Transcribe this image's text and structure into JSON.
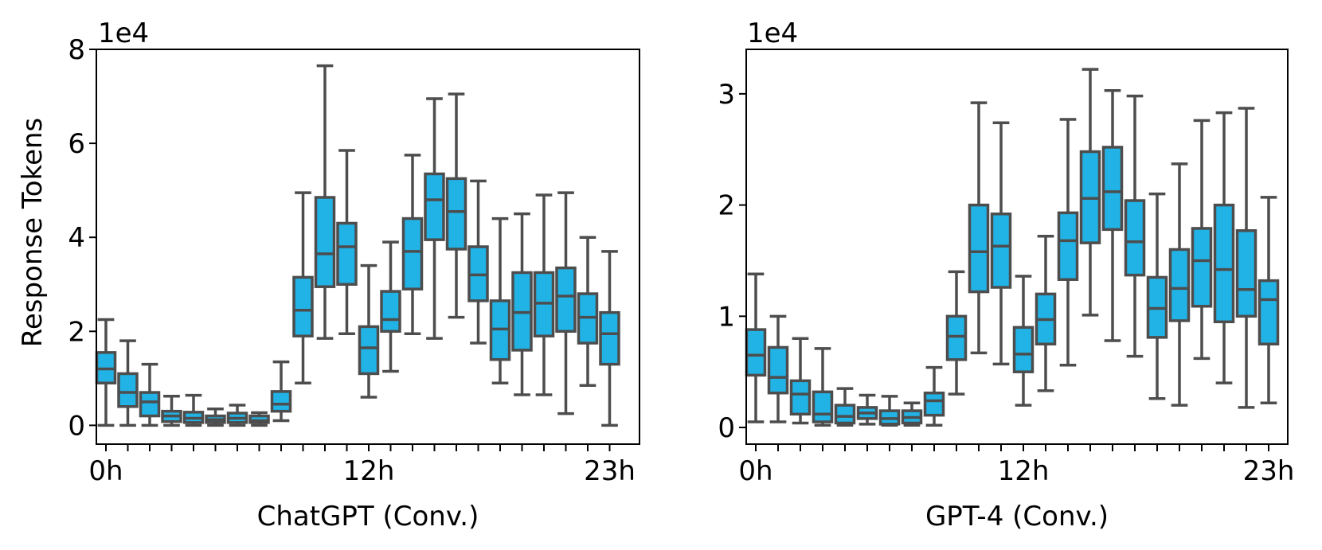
{
  "figure": {
    "ylabel": "Response Tokens"
  },
  "style": {
    "box_fill": "#21b3e6",
    "box_edge": "#4d4d4d",
    "axis_color": "#000000"
  },
  "chart_data": [
    {
      "type": "box",
      "title": "",
      "xlabel": "ChatGPT (Conv.)",
      "ylabel": "Response Tokens",
      "offset_text": "1e4",
      "ylim": [
        -0.4,
        8
      ],
      "yticks": [
        0,
        2,
        4,
        6,
        8
      ],
      "ytick_labels": [
        "0",
        "2",
        "4",
        "6",
        "8"
      ],
      "xticks_labeled": {
        "0": "0h",
        "12": "12h",
        "23": "23h"
      },
      "hours": [
        0,
        1,
        2,
        3,
        4,
        5,
        6,
        7,
        8,
        9,
        10,
        11,
        12,
        13,
        14,
        15,
        16,
        17,
        18,
        19,
        20,
        21,
        22,
        23
      ],
      "stats": [
        {
          "whislo": 0.0,
          "q1": 0.9,
          "med": 1.2,
          "q3": 1.55,
          "whishi": 2.25
        },
        {
          "whislo": 0.0,
          "q1": 0.4,
          "med": 0.7,
          "q3": 1.1,
          "whishi": 1.8
        },
        {
          "whislo": 0.0,
          "q1": 0.2,
          "med": 0.5,
          "q3": 0.7,
          "whishi": 1.3
        },
        {
          "whislo": 0.0,
          "q1": 0.08,
          "med": 0.2,
          "q3": 0.3,
          "whishi": 0.62
        },
        {
          "whislo": 0.0,
          "q1": 0.06,
          "med": 0.15,
          "q3": 0.28,
          "whishi": 0.64
        },
        {
          "whislo": 0.0,
          "q1": 0.06,
          "med": 0.12,
          "q3": 0.2,
          "whishi": 0.35
        },
        {
          "whislo": 0.0,
          "q1": 0.06,
          "med": 0.15,
          "q3": 0.26,
          "whishi": 0.43
        },
        {
          "whislo": 0.0,
          "q1": 0.06,
          "med": 0.1,
          "q3": 0.2,
          "whishi": 0.27
        },
        {
          "whislo": 0.1,
          "q1": 0.3,
          "med": 0.45,
          "q3": 0.72,
          "whishi": 1.35
        },
        {
          "whislo": 0.9,
          "q1": 1.9,
          "med": 2.45,
          "q3": 3.15,
          "whishi": 4.95
        },
        {
          "whislo": 1.85,
          "q1": 2.95,
          "med": 3.65,
          "q3": 4.85,
          "whishi": 7.65
        },
        {
          "whislo": 1.95,
          "q1": 3.0,
          "med": 3.8,
          "q3": 4.3,
          "whishi": 5.85
        },
        {
          "whislo": 0.6,
          "q1": 1.1,
          "med": 1.65,
          "q3": 2.1,
          "whishi": 3.4
        },
        {
          "whislo": 1.15,
          "q1": 2.0,
          "med": 2.25,
          "q3": 2.85,
          "whishi": 3.9
        },
        {
          "whislo": 1.95,
          "q1": 2.9,
          "med": 3.7,
          "q3": 4.4,
          "whishi": 5.75
        },
        {
          "whislo": 1.85,
          "q1": 3.95,
          "med": 4.8,
          "q3": 5.35,
          "whishi": 6.95
        },
        {
          "whislo": 2.3,
          "q1": 3.75,
          "med": 4.55,
          "q3": 5.25,
          "whishi": 7.05
        },
        {
          "whislo": 1.75,
          "q1": 2.65,
          "med": 3.2,
          "q3": 3.8,
          "whishi": 5.2
        },
        {
          "whislo": 0.9,
          "q1": 1.4,
          "med": 2.05,
          "q3": 2.65,
          "whishi": 4.4
        },
        {
          "whislo": 0.65,
          "q1": 1.6,
          "med": 2.4,
          "q3": 3.25,
          "whishi": 4.5
        },
        {
          "whislo": 0.65,
          "q1": 1.9,
          "med": 2.6,
          "q3": 3.25,
          "whishi": 4.9
        },
        {
          "whislo": 0.25,
          "q1": 2.0,
          "med": 2.75,
          "q3": 3.35,
          "whishi": 4.95
        },
        {
          "whislo": 0.85,
          "q1": 1.75,
          "med": 2.3,
          "q3": 2.8,
          "whishi": 4.0
        },
        {
          "whislo": 0.0,
          "q1": 1.3,
          "med": 1.95,
          "q3": 2.4,
          "whishi": 3.7
        }
      ]
    },
    {
      "type": "box",
      "title": "",
      "xlabel": "GPT-4 (Conv.)",
      "ylabel": "",
      "offset_text": "1e4",
      "ylim": [
        -0.15,
        3.4
      ],
      "yticks": [
        0,
        1,
        2,
        3
      ],
      "ytick_labels": [
        "0",
        "1",
        "2",
        "3"
      ],
      "xticks_labeled": {
        "0": "0h",
        "12": "12h",
        "23": "23h"
      },
      "hours": [
        0,
        1,
        2,
        3,
        4,
        5,
        6,
        7,
        8,
        9,
        10,
        11,
        12,
        13,
        14,
        15,
        16,
        17,
        18,
        19,
        20,
        21,
        22,
        23
      ],
      "stats": [
        {
          "whislo": 0.05,
          "q1": 0.47,
          "med": 0.65,
          "q3": 0.88,
          "whishi": 1.38
        },
        {
          "whislo": 0.05,
          "q1": 0.31,
          "med": 0.45,
          "q3": 0.72,
          "whishi": 1.0
        },
        {
          "whislo": 0.04,
          "q1": 0.12,
          "med": 0.3,
          "q3": 0.42,
          "whishi": 0.8
        },
        {
          "whislo": 0.02,
          "q1": 0.05,
          "med": 0.12,
          "q3": 0.32,
          "whishi": 0.71
        },
        {
          "whislo": 0.02,
          "q1": 0.04,
          "med": 0.1,
          "q3": 0.2,
          "whishi": 0.35
        },
        {
          "whislo": 0.03,
          "q1": 0.08,
          "med": 0.13,
          "q3": 0.18,
          "whishi": 0.29
        },
        {
          "whislo": 0.02,
          "q1": 0.03,
          "med": 0.08,
          "q3": 0.15,
          "whishi": 0.28
        },
        {
          "whislo": 0.02,
          "q1": 0.04,
          "med": 0.09,
          "q3": 0.15,
          "whishi": 0.22
        },
        {
          "whislo": 0.02,
          "q1": 0.11,
          "med": 0.24,
          "q3": 0.31,
          "whishi": 0.54
        },
        {
          "whislo": 0.3,
          "q1": 0.61,
          "med": 0.82,
          "q3": 1.0,
          "whishi": 1.4
        },
        {
          "whislo": 0.67,
          "q1": 1.22,
          "med": 1.58,
          "q3": 2.0,
          "whishi": 2.92
        },
        {
          "whislo": 0.57,
          "q1": 1.26,
          "med": 1.63,
          "q3": 1.92,
          "whishi": 2.74
        },
        {
          "whislo": 0.2,
          "q1": 0.5,
          "med": 0.66,
          "q3": 0.9,
          "whishi": 1.36
        },
        {
          "whislo": 0.33,
          "q1": 0.75,
          "med": 0.97,
          "q3": 1.2,
          "whishi": 1.72
        },
        {
          "whislo": 0.56,
          "q1": 1.33,
          "med": 1.68,
          "q3": 1.93,
          "whishi": 2.77
        },
        {
          "whislo": 1.01,
          "q1": 1.66,
          "med": 2.06,
          "q3": 2.48,
          "whishi": 3.22
        },
        {
          "whislo": 0.78,
          "q1": 1.78,
          "med": 2.12,
          "q3": 2.52,
          "whishi": 3.03
        },
        {
          "whislo": 0.64,
          "q1": 1.37,
          "med": 1.67,
          "q3": 2.04,
          "whishi": 2.98
        },
        {
          "whislo": 0.26,
          "q1": 0.81,
          "med": 1.07,
          "q3": 1.35,
          "whishi": 2.1
        },
        {
          "whislo": 0.2,
          "q1": 0.96,
          "med": 1.25,
          "q3": 1.6,
          "whishi": 2.37
        },
        {
          "whislo": 0.62,
          "q1": 1.09,
          "med": 1.5,
          "q3": 1.79,
          "whishi": 2.76
        },
        {
          "whislo": 0.4,
          "q1": 0.95,
          "med": 1.42,
          "q3": 2.0,
          "whishi": 2.83
        },
        {
          "whislo": 0.18,
          "q1": 1.0,
          "med": 1.24,
          "q3": 1.77,
          "whishi": 2.87
        },
        {
          "whislo": 0.22,
          "q1": 0.75,
          "med": 1.15,
          "q3": 1.32,
          "whishi": 2.07
        }
      ]
    }
  ]
}
